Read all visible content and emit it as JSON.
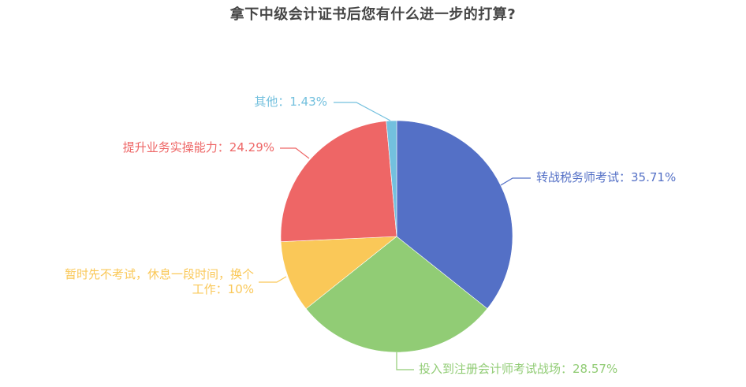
{
  "chart_data": {
    "type": "pie",
    "title": "拿下中级会计证书后您有什么进一步的打算?",
    "categories": [
      "转战税务师考试",
      "投入到注册会计师考试战场",
      "暂时先不考试，休息一段时间，换个工作",
      "提升业务实操能力",
      "其他"
    ],
    "values": [
      35.71,
      28.57,
      10,
      24.29,
      1.43
    ],
    "colors": [
      "#5470c6",
      "#91cc75",
      "#fac858",
      "#ee6666",
      "#73c0de"
    ],
    "legend": "none",
    "start_angle": 90,
    "direction": "clockwise"
  },
  "labels": {
    "shuiwu": "转战税务师考试：35.71%",
    "cpa": "投入到注册会计师考试战场：28.57%",
    "rest_line1": "暂时先不考试，休息一段时间，换个",
    "rest_line2": "工作：10%",
    "skill": "提升业务实操能力：24.29%",
    "other": "其他：1.43%"
  }
}
